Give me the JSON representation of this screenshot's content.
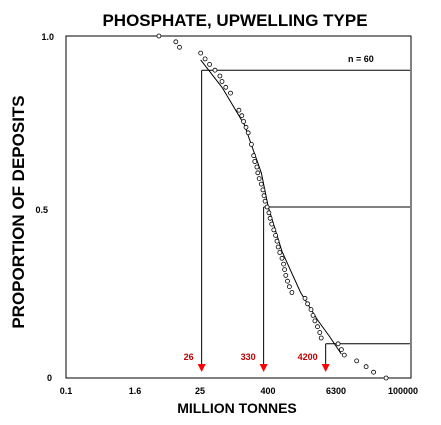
{
  "chart_data": {
    "type": "scatter",
    "title": "PHOSPHATE, UPWELLING TYPE",
    "xlabel": "MILLION TONNES",
    "ylabel": "PROPORTION OF DEPOSITS",
    "x_scale": "log",
    "xlim": [
      0.1,
      100000
    ],
    "ylim": [
      0,
      1
    ],
    "x_ticks": [
      "0.1",
      "1.6",
      "25",
      "400",
      "6300",
      "100000"
    ],
    "y_ticks": [
      "0",
      "0.5",
      "1.0"
    ],
    "sample_label": "n = 60",
    "series": [
      {
        "points": [
          [
            4.5,
            1.0
          ],
          [
            9,
            0.983
          ],
          [
            10.5,
            0.967
          ],
          [
            25,
            0.95
          ],
          [
            30,
            0.933
          ],
          [
            36,
            0.917
          ],
          [
            45,
            0.9
          ],
          [
            55,
            0.883
          ],
          [
            60,
            0.867
          ],
          [
            70,
            0.85
          ],
          [
            85,
            0.833
          ],
          [
            120,
            0.783
          ],
          [
            135,
            0.767
          ],
          [
            145,
            0.75
          ],
          [
            160,
            0.733
          ],
          [
            175,
            0.717
          ],
          [
            200,
            0.683
          ],
          [
            220,
            0.65
          ],
          [
            230,
            0.633
          ],
          [
            250,
            0.617
          ],
          [
            260,
            0.6
          ],
          [
            275,
            0.583
          ],
          [
            300,
            0.567
          ],
          [
            320,
            0.55
          ],
          [
            335,
            0.533
          ],
          [
            350,
            0.517
          ],
          [
            380,
            0.5
          ],
          [
            410,
            0.483
          ],
          [
            430,
            0.467
          ],
          [
            460,
            0.45
          ],
          [
            500,
            0.433
          ],
          [
            540,
            0.417
          ],
          [
            570,
            0.4
          ],
          [
            600,
            0.383
          ],
          [
            640,
            0.367
          ],
          [
            700,
            0.35
          ],
          [
            750,
            0.333
          ],
          [
            780,
            0.317
          ],
          [
            820,
            0.3
          ],
          [
            880,
            0.283
          ],
          [
            950,
            0.267
          ],
          [
            1050,
            0.25
          ],
          [
            1800,
            0.233
          ],
          [
            2000,
            0.217
          ],
          [
            2300,
            0.2
          ],
          [
            2500,
            0.183
          ],
          [
            2700,
            0.167
          ],
          [
            3000,
            0.15
          ],
          [
            3300,
            0.133
          ],
          [
            3500,
            0.117
          ],
          [
            7000,
            0.1
          ],
          [
            8000,
            0.083
          ],
          [
            9000,
            0.067
          ],
          [
            15000,
            0.05
          ],
          [
            22000,
            0.033
          ],
          [
            30000,
            0.017
          ],
          [
            50000,
            0.0
          ]
        ]
      }
    ],
    "fit_curve": [
      [
        25,
        0.93
      ],
      [
        60,
        0.85
      ],
      [
        150,
        0.74
      ],
      [
        300,
        0.6
      ],
      [
        400,
        0.5
      ],
      [
        700,
        0.37
      ],
      [
        1500,
        0.25
      ],
      [
        3000,
        0.17
      ],
      [
        5000,
        0.12
      ],
      [
        8000,
        0.07
      ]
    ],
    "percentile_markers": [
      {
        "label": "26",
        "x": 26,
        "y": 0.9
      },
      {
        "label": "330",
        "x": 330,
        "y": 0.5
      },
      {
        "label": "4200",
        "x": 4200,
        "y": 0.1
      }
    ]
  },
  "colors": {
    "marker": "#ff0000",
    "annotation": "#c00000",
    "ink": "#000000"
  }
}
